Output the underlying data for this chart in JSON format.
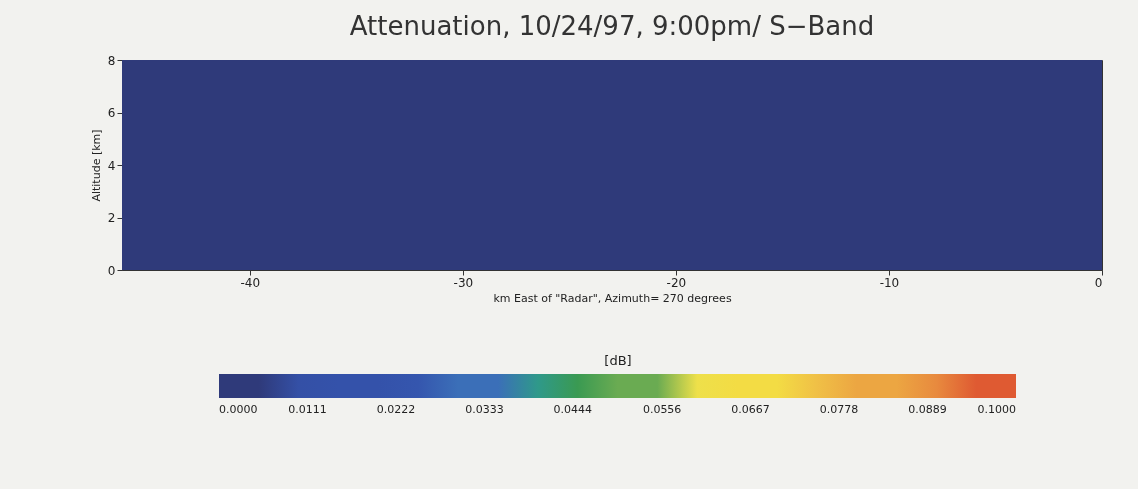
{
  "chart_data": {
    "type": "heatmap",
    "title": "Attenuation, 10/24/97, 9:00pm/ S−Band",
    "xlabel": "km East of \"Radar\", Azimuth= 270 degrees",
    "ylabel": "Altitude [km]",
    "clabel": "[dB]",
    "cells": [
      [
        0
      ]
    ],
    "xlim": [
      -46,
      0
    ],
    "xticks": [
      -40,
      -30,
      -20,
      -10,
      0
    ],
    "ylim": [
      0,
      8
    ],
    "yticks": [
      0,
      2,
      4,
      6,
      8
    ],
    "clim": [
      0,
      0.1
    ],
    "cticks": [
      {
        "value": 0,
        "label": "0.0000"
      },
      0.0111,
      0.0222,
      0.0333,
      0.0444,
      0.0556,
      0.0667,
      0.0778,
      0.0889,
      {
        "value": 0.1,
        "label": "0.1000"
      }
    ],
    "colors": [
      "#2f3a7a",
      "#3450a6",
      "#3452aa",
      "#3556ae",
      "#3b6fb8",
      "#2f998a",
      "#3a9a52",
      "#6aab52",
      "#eee04a",
      "#f3dc44",
      "#f0c046",
      "#eca642",
      "#e88a3e",
      "#df5a32"
    ]
  }
}
